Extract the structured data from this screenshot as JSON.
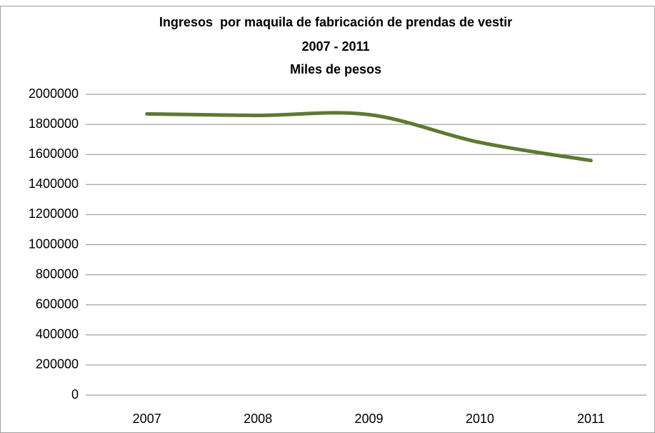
{
  "chart_data": {
    "type": "line",
    "title": [
      "Ingresos  por maquila de fabricación de prendas de vestir",
      "2007 - 2011",
      "Miles de pesos"
    ],
    "categories": [
      "2007",
      "2008",
      "2009",
      "2010",
      "2011"
    ],
    "values": [
      1870000,
      1860000,
      1865000,
      1680000,
      1560000
    ],
    "color": "#5b7a31",
    "smooth": true,
    "ylim": [
      0,
      2000000
    ],
    "yticks": [
      0,
      200000,
      400000,
      600000,
      800000,
      1000000,
      1200000,
      1400000,
      1600000,
      1800000,
      2000000
    ],
    "grid": true
  }
}
